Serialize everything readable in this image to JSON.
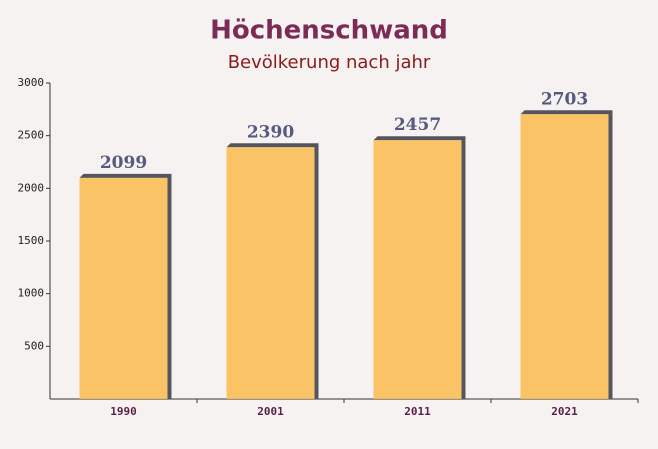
{
  "chart_data": {
    "type": "bar",
    "title": "Höchenschwand",
    "subtitle": "Bevölkerung nach jahr",
    "categories": [
      "1990",
      "2001",
      "2011",
      "2021"
    ],
    "values": [
      2099,
      2390,
      2457,
      2703
    ],
    "color": "#fbbf56",
    "ylim": [
      0,
      3000
    ],
    "yticks": [
      500,
      1000,
      1500,
      2000,
      2500,
      3000
    ]
  }
}
